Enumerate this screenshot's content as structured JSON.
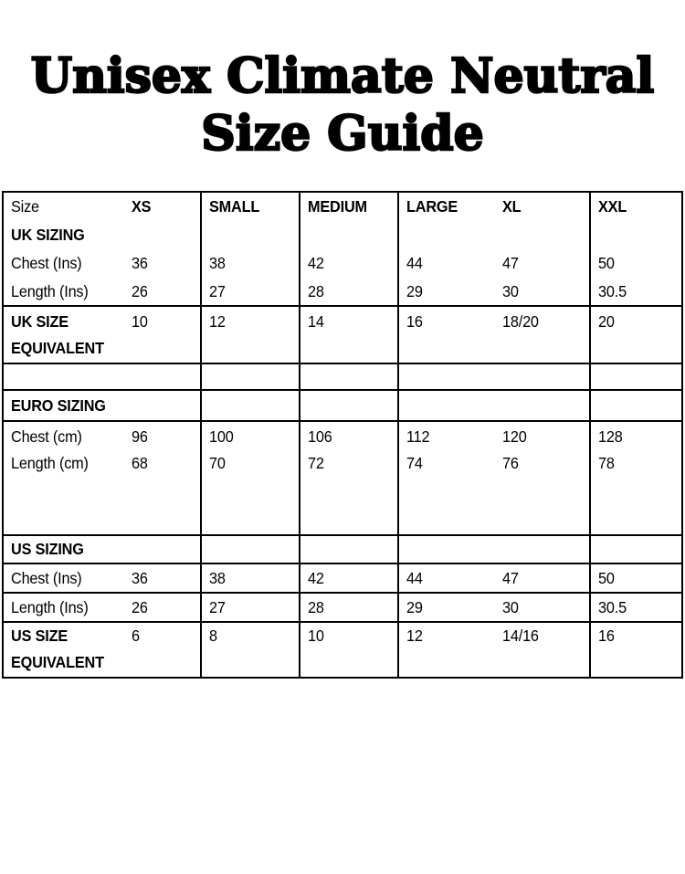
{
  "title": {
    "line1": "Unisex Climate Neutral",
    "line2": "Size Guide"
  },
  "colors": {
    "text": "#000000",
    "background": "#ffffff",
    "table_border": "#000000"
  },
  "table": {
    "header": {
      "size_label": "Size",
      "cols": [
        "XS",
        "SMALL",
        "MEDIUM",
        "LARGE",
        "XL",
        "XXL"
      ]
    },
    "uk": {
      "section_label": "UK SIZING",
      "chest": {
        "label": "Chest (Ins)",
        "values": [
          "36",
          "38",
          "42",
          "44",
          "47",
          "50"
        ]
      },
      "length": {
        "label": "Length (Ins)",
        "values": [
          "26",
          "27",
          "28",
          "29",
          "30",
          "30.5"
        ]
      },
      "equiv": {
        "label_line1": "UK SIZE",
        "label_line2": "EQUIVALENT",
        "values": [
          "10",
          "12",
          "14",
          "16",
          "18/20",
          "20"
        ]
      }
    },
    "euro": {
      "section_label": "EURO SIZING",
      "chest": {
        "label": "Chest (cm)",
        "values": [
          "96",
          "100",
          "106",
          "112",
          "120",
          "128"
        ]
      },
      "length": {
        "label": "Length (cm)",
        "values": [
          "68",
          "70",
          "72",
          "74",
          "76",
          "78"
        ]
      }
    },
    "us": {
      "section_label": "US SIZING",
      "chest": {
        "label": "Chest (Ins)",
        "values": [
          "36",
          "38",
          "42",
          "44",
          "47",
          "50"
        ]
      },
      "length": {
        "label": "Length (Ins)",
        "values": [
          "26",
          "27",
          "28",
          "29",
          "30",
          "30.5"
        ]
      },
      "equiv": {
        "label_line1": "US SIZE",
        "label_line2": "EQUIVALENT",
        "values": [
          "6",
          "8",
          "10",
          "12",
          "14/16",
          "16"
        ]
      }
    }
  }
}
